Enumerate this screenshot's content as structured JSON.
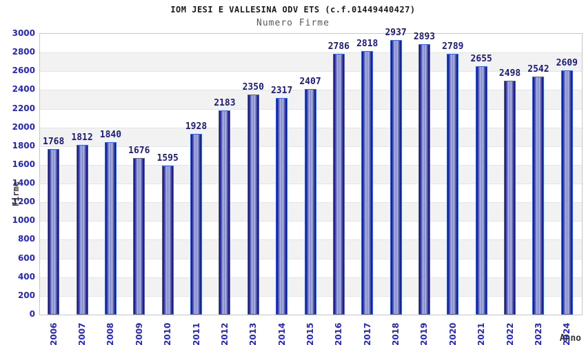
{
  "header": {
    "title": "IOM JESI E VALLESINA ODV ETS (c.f.01449440427)",
    "subtitle": "Numero Firme"
  },
  "chart_data": {
    "type": "bar",
    "title": "IOM JESI E VALLESINA ODV ETS (c.f.01449440427)",
    "subtitle": "Numero Firme",
    "xlabel": "Anno",
    "ylabel": "Firme",
    "categories": [
      "2006",
      "2007",
      "2008",
      "2009",
      "2010",
      "2011",
      "2012",
      "2013",
      "2014",
      "2015",
      "2016",
      "2017",
      "2018",
      "2019",
      "2020",
      "2021",
      "2022",
      "2023",
      "2024"
    ],
    "values": [
      1768,
      1812,
      1840,
      1676,
      1595,
      1928,
      2183,
      2350,
      2317,
      2407,
      2786,
      2818,
      2937,
      2893,
      2789,
      2655,
      2498,
      2542,
      2609
    ],
    "ylim": [
      0,
      3000
    ],
    "ytick_step": 200,
    "yticks": [
      0,
      200,
      400,
      600,
      800,
      1000,
      1200,
      1400,
      1600,
      1800,
      2000,
      2200,
      2400,
      2600,
      2800,
      3000
    ],
    "legend": "none",
    "grid": "alternating horizontal bands every 200",
    "colors": {
      "bar_edge": "#3565ec",
      "bar_dark": "#10107e",
      "bar_light": "#b4bae2",
      "axis_label_blue": "#2424cc",
      "value_label_navy": "#1a1a80",
      "band_gray": "#f2f2f2",
      "plot_border": "#c6c6c6",
      "title_color": "#1a1a1a",
      "subtitle_color": "#585858"
    }
  }
}
